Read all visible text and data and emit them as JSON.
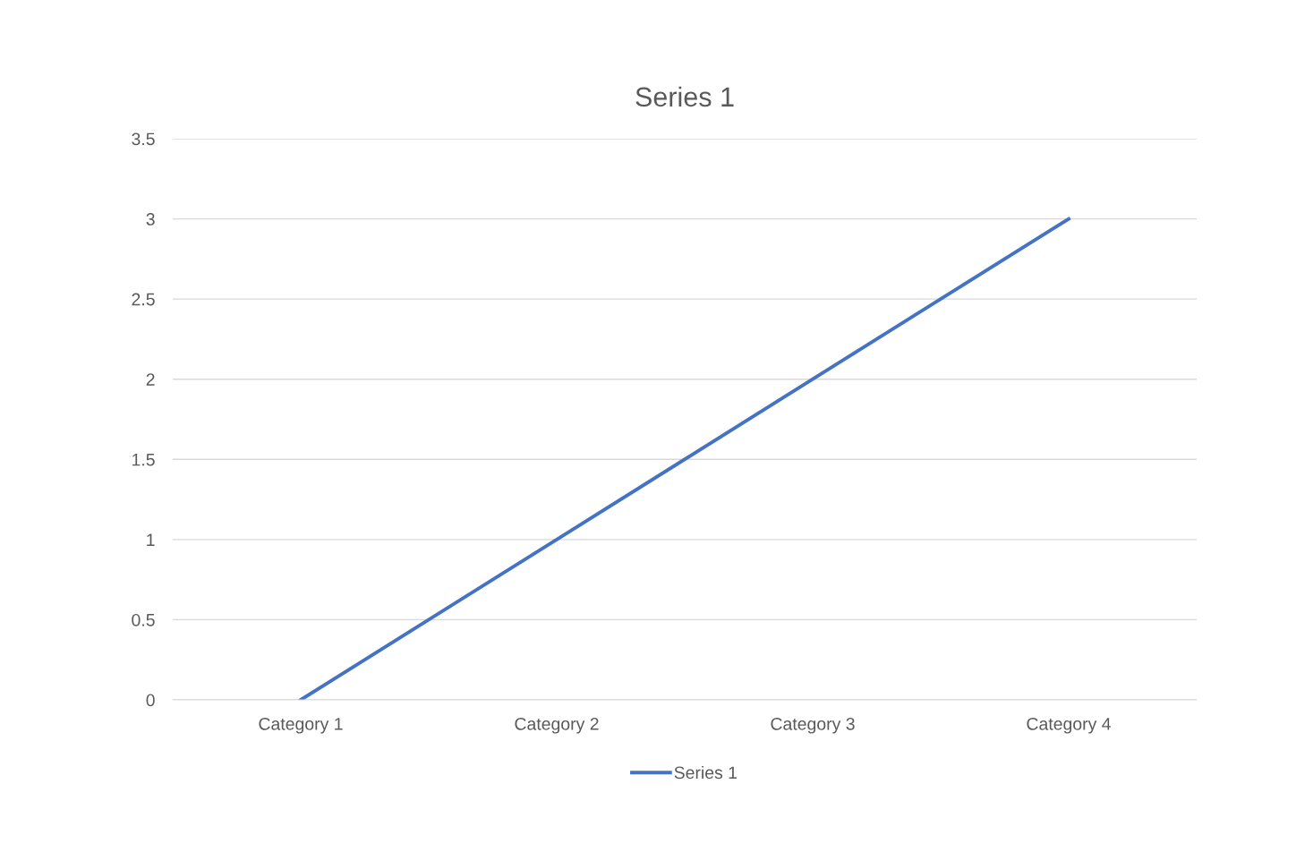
{
  "chart_data": {
    "type": "line",
    "title": "Series 1",
    "categories": [
      "Category 1",
      "Category 2",
      "Category 3",
      "Category 4"
    ],
    "series": [
      {
        "name": "Series 1",
        "color": "#4472c4",
        "values": [
          0,
          1,
          2,
          3
        ]
      }
    ],
    "ylim": [
      0,
      3.5
    ],
    "yticks": [
      0,
      0.5,
      1,
      1.5,
      2,
      2.5,
      3,
      3.5
    ],
    "grid": "y",
    "legend": "bottom",
    "marker": "none",
    "line_style": "solid"
  }
}
